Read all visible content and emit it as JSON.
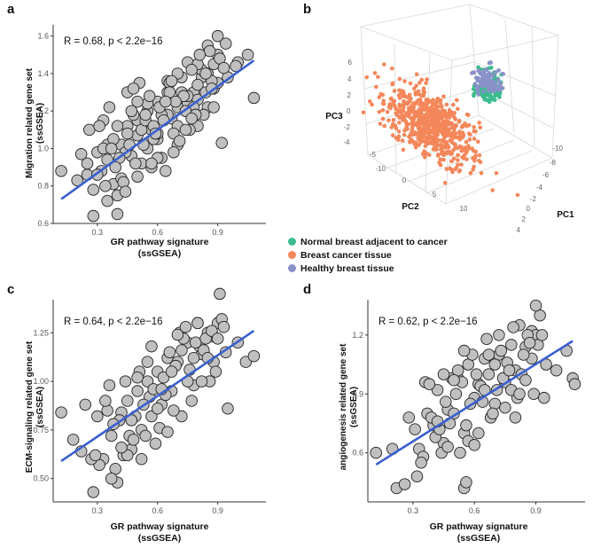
{
  "panels": {
    "a": {
      "letter": "a",
      "stat": "R = 0.68, p < 2.2e−16",
      "ylabel": "Migration related gene set",
      "ylabel_unit": "(ssGSEA)"
    },
    "b": {
      "letter": "b"
    },
    "c": {
      "letter": "c",
      "stat": "R = 0.64, p < 2.2e−16",
      "ylabel": "ECM-signaling related gene set",
      "ylabel_unit": "(ssGSEA)"
    },
    "d": {
      "letter": "d",
      "stat": "R = 0.62, p < 2.2e−16",
      "ylabel": "angiogenesis related gene set",
      "ylabel_unit": "(ssGSEA)"
    }
  },
  "xlabel": "GR pathway signature",
  "xlabel_unit": "(ssGSEA)",
  "colors": {
    "points": "#c0c0c0",
    "line": "#3a5fd0",
    "normal": "#3dbb8f",
    "cancer": "#f4875a",
    "healthy": "#8a91c9"
  },
  "chart_data": [
    {
      "panel": "a",
      "type": "scatter",
      "title": "",
      "xlabel": "GR pathway signature (ssGSEA)",
      "ylabel": "Migration related gene set (ssGSEA)",
      "xlim": [
        0.08,
        1.14
      ],
      "ylim": [
        0.6,
        1.66
      ],
      "xticks": [
        "0.3",
        "0.6",
        "0.9"
      ],
      "xtick_values": [
        0.3,
        0.6,
        0.9
      ],
      "yticks": [
        "0.6",
        "0.8",
        "1.0",
        "1.2",
        "1.4",
        "1.6"
      ],
      "ytick_values": [
        0.6,
        0.8,
        1.0,
        1.2,
        1.4,
        1.6
      ],
      "fit": {
        "x": [
          0.12,
          1.08
        ],
        "y": [
          0.73,
          1.47
        ]
      },
      "x": [
        0.12,
        0.2,
        0.22,
        0.25,
        0.28,
        0.3,
        0.32,
        0.33,
        0.35,
        0.38,
        0.4,
        0.42,
        0.45,
        0.47,
        0.5,
        0.52,
        0.55,
        0.57,
        0.6,
        0.62,
        0.65,
        0.67,
        0.7,
        0.72,
        0.75,
        0.78,
        0.8,
        0.82,
        0.85,
        0.88,
        0.9,
        0.95,
        1.0,
        1.08,
        0.3,
        0.35,
        0.4,
        0.45,
        0.5,
        0.55,
        0.6,
        0.65,
        0.7,
        0.75,
        0.8,
        0.85,
        0.9,
        0.4,
        0.5,
        0.6,
        0.7,
        0.8,
        0.45,
        0.55,
        0.65,
        0.75,
        0.85,
        0.25,
        0.35,
        0.42,
        0.48,
        0.58,
        0.68,
        0.78,
        0.88,
        0.38,
        0.52,
        0.62,
        0.72,
        0.82,
        0.92,
        0.33,
        0.44,
        0.56,
        0.66,
        0.76,
        0.86,
        0.28,
        0.46,
        0.54,
        0.64,
        0.74,
        0.84,
        0.94,
        0.36,
        0.5,
        0.6,
        0.7,
        0.8,
        0.9,
        0.43,
        0.53,
        0.63,
        0.73,
        0.83,
        0.41,
        0.51,
        0.61,
        0.71,
        0.81,
        0.91,
        0.39,
        0.57,
        0.69,
        0.77,
        0.87,
        0.26,
        0.34,
        0.48,
        0.58,
        0.68,
        0.99,
        1.05,
        0.93,
        0.88,
        0.79,
        0.66,
        0.59,
        0.49,
        0.37,
        0.31,
        0.44,
        0.54,
        0.64,
        0.74,
        0.84,
        0.47,
        0.57,
        0.67,
        0.77,
        0.87
      ],
      "y": [
        0.88,
        0.83,
        0.97,
        0.86,
        0.64,
        0.98,
        0.88,
        1.15,
        1.02,
        0.81,
        0.65,
        1.02,
        1.12,
        0.96,
        1.07,
        0.92,
        1.2,
        1.1,
        1.05,
        0.95,
        1.3,
        1.16,
        1.12,
        1.38,
        1.24,
        1.3,
        1.26,
        1.38,
        1.4,
        1.45,
        1.5,
        1.38,
        1.46,
        1.27,
        0.86,
        0.94,
        1.12,
        1.08,
        1.15,
        1.0,
        1.25,
        1.18,
        1.22,
        1.28,
        1.34,
        1.22,
        1.6,
        0.75,
        0.85,
        0.95,
        1.02,
        1.12,
        1.3,
        1.24,
        1.36,
        1.46,
        1.55,
        0.92,
        0.72,
        0.84,
        1.18,
        1.05,
        1.08,
        1.22,
        1.32,
        1.05,
        1.1,
        1.18,
        1.3,
        1.42,
        1.03,
        1.0,
        0.98,
        1.28,
        1.35,
        1.1,
        1.52,
        0.78,
        1.02,
        1.15,
        0.88,
        1.2,
        1.3,
        1.56,
        1.22,
        1.25,
        1.08,
        1.4,
        1.45,
        1.35,
        0.82,
        1.02,
        1.15,
        1.28,
        1.18,
        0.95,
        1.35,
        1.22,
        1.04,
        1.5,
        1.48,
        0.9,
        0.9,
        1.25,
        1.42,
        1.36,
        1.1,
        0.8,
        1.32,
        1.12,
        0.98,
        1.44,
        1.5,
        1.43,
        1.22,
        1.18,
        1.3,
        1.08,
        0.92,
        1.0,
        1.12,
        0.77,
        1.18,
        1.25,
        1.1,
        1.4,
        1.2,
        0.92,
        1.36,
        1.16,
        1.32
      ]
    },
    {
      "panel": "c",
      "type": "scatter",
      "title": "",
      "xlabel": "GR pathway signature (ssGSEA)",
      "ylabel": "ECM-signaling related gene set (ssGSEA)",
      "xlim": [
        0.08,
        1.14
      ],
      "ylim": [
        0.38,
        1.42
      ],
      "xticks": [
        "0.3",
        "0.6",
        "0.9"
      ],
      "xtick_values": [
        0.3,
        0.6,
        0.9
      ],
      "yticks": [
        "0.50",
        "0.75",
        "1.00",
        "1.25"
      ],
      "ytick_values": [
        0.5,
        0.75,
        1.0,
        1.25
      ],
      "fit": {
        "x": [
          0.12,
          1.08
        ],
        "y": [
          0.59,
          1.26
        ]
      },
      "x": [
        0.12,
        0.18,
        0.22,
        0.24,
        0.28,
        0.3,
        0.33,
        0.35,
        0.37,
        0.4,
        0.42,
        0.45,
        0.47,
        0.5,
        0.52,
        0.55,
        0.57,
        0.6,
        0.62,
        0.65,
        0.67,
        0.7,
        0.72,
        0.75,
        0.78,
        0.8,
        0.82,
        0.85,
        0.88,
        0.9,
        0.92,
        0.95,
        1.0,
        1.04,
        1.08,
        0.31,
        0.36,
        0.41,
        0.46,
        0.51,
        0.56,
        0.61,
        0.66,
        0.71,
        0.76,
        0.81,
        0.86,
        0.91,
        0.43,
        0.53,
        0.63,
        0.73,
        0.83,
        0.48,
        0.58,
        0.68,
        0.78,
        0.88,
        0.27,
        0.38,
        0.44,
        0.49,
        0.59,
        0.69,
        0.79,
        0.89,
        0.39,
        0.54,
        0.64,
        0.74,
        0.84,
        0.94,
        0.34,
        0.45,
        0.57,
        0.67,
        0.77,
        0.87,
        0.29,
        0.47,
        0.55,
        0.65,
        0.75,
        0.85,
        0.93,
        0.37,
        0.52,
        0.62,
        0.72,
        0.82,
        0.42,
        0.5,
        0.6,
        0.7,
        0.8,
        0.9
      ],
      "y": [
        0.84,
        0.7,
        0.64,
        0.88,
        0.43,
        0.82,
        0.6,
        0.85,
        0.72,
        0.48,
        0.84,
        0.9,
        0.65,
        0.95,
        0.75,
        1.0,
        0.82,
        1.05,
        0.88,
        1.12,
        0.95,
        1.1,
        0.82,
        1.2,
        0.98,
        1.3,
        1.14,
        1.25,
        1.1,
        1.3,
        1.32,
        0.86,
        1.2,
        1.1,
        1.13,
        0.57,
        0.98,
        0.8,
        0.72,
        1.05,
        0.92,
        0.76,
        1.15,
        1.25,
        1.06,
        1.18,
        1.0,
        1.45,
        0.62,
        0.88,
        1.02,
        1.22,
        1.16,
        0.7,
        0.96,
        0.85,
        1.12,
        1.23,
        0.6,
        0.78,
        1.0,
        0.82,
        0.68,
        1.08,
        1.2,
        1.05,
        0.55,
        0.72,
        0.93,
        1.28,
        1.22,
        1.15,
        0.9,
        0.62,
        1.18,
        1.05,
        0.9,
        1.26,
        0.62,
        0.8,
        1.1,
        0.74,
        1.0,
        1.12,
        1.28,
        0.5,
        0.6,
        0.96,
        1.16,
        1.0,
        0.66,
        1.02,
        0.86,
        1.24,
        1.3,
        1.22
      ]
    },
    {
      "panel": "d",
      "type": "scatter",
      "title": "",
      "xlabel": "GR pathway signature (ssGSEA)",
      "ylabel": "angiogenesis related gene set (ssGSEA)",
      "xlim": [
        0.08,
        1.14
      ],
      "ylim": [
        0.35,
        1.38
      ],
      "xticks": [
        "0.3",
        "0.6",
        "0.9"
      ],
      "xtick_values": [
        0.3,
        0.6,
        0.9
      ],
      "yticks": [
        "0.6",
        "0.9",
        "1.2"
      ],
      "ytick_values": [
        0.6,
        0.9,
        1.2
      ],
      "fit": {
        "x": [
          0.12,
          1.08
        ],
        "y": [
          0.54,
          1.17
        ]
      },
      "x": [
        0.12,
        0.2,
        0.22,
        0.26,
        0.28,
        0.31,
        0.33,
        0.35,
        0.37,
        0.4,
        0.42,
        0.45,
        0.47,
        0.5,
        0.52,
        0.55,
        0.57,
        0.6,
        0.62,
        0.65,
        0.67,
        0.7,
        0.72,
        0.75,
        0.78,
        0.8,
        0.82,
        0.85,
        0.88,
        0.9,
        0.92,
        0.95,
        1.0,
        1.05,
        1.08,
        1.09,
        0.32,
        0.36,
        0.41,
        0.46,
        0.51,
        0.56,
        0.61,
        0.66,
        0.71,
        0.76,
        0.81,
        0.86,
        0.91,
        0.43,
        0.53,
        0.63,
        0.73,
        0.83,
        0.48,
        0.58,
        0.68,
        0.78,
        0.88,
        0.38,
        0.44,
        0.49,
        0.59,
        0.69,
        0.79,
        0.89,
        0.39,
        0.54,
        0.64,
        0.74,
        0.84,
        0.94,
        0.34,
        0.45,
        0.57,
        0.67,
        0.77,
        0.87,
        0.47,
        0.55,
        0.65,
        0.75,
        0.85,
        0.93,
        0.52,
        0.62,
        0.72,
        0.82,
        0.42,
        0.5,
        0.6,
        0.7,
        0.8,
        0.9,
        0.55,
        0.56
      ],
      "y": [
        0.6,
        0.62,
        0.42,
        0.44,
        0.78,
        0.72,
        0.62,
        0.58,
        0.8,
        0.74,
        0.92,
        0.65,
        0.82,
        0.8,
        0.98,
        0.7,
        1.05,
        0.88,
        0.95,
        1.08,
        1.0,
        0.85,
        1.1,
        0.96,
        1.15,
        1.02,
        1.25,
        1.14,
        1.22,
        1.2,
        1.3,
        1.05,
        1.02,
        1.12,
        0.98,
        0.95,
        0.48,
        0.96,
        0.68,
        0.86,
        0.9,
        0.74,
        1.0,
        1.18,
        0.92,
        1.06,
        0.88,
        1.2,
        1.15,
        0.72,
        0.6,
        0.94,
        1.12,
        1.0,
        0.75,
        0.85,
        0.78,
        0.92,
        1.08,
        0.95,
        0.6,
        0.98,
        1.1,
        0.8,
        1.24,
        0.9,
        0.78,
        0.96,
        0.86,
        0.98,
        1.1,
        0.88,
        0.55,
        1.0,
        0.66,
        1.1,
        1.02,
        1.16,
        0.63,
        1.12,
        0.92,
        0.83,
        0.97,
        1.2,
        1.02,
        0.7,
        1.2,
        0.9,
        0.76,
        0.97,
        0.64,
        1.05,
        0.78,
        1.35,
        0.42,
        0.45
      ]
    },
    {
      "panel": "b",
      "type": "scatter3d",
      "title": "",
      "axis_labels": [
        "PC1",
        "PC2",
        "PC3"
      ],
      "pc1_ticks": [
        "-10",
        "-8",
        "-6",
        "-4",
        "-2",
        "0",
        "2",
        "4"
      ],
      "pc2_ticks": [
        "0",
        "5",
        "10"
      ],
      "pc3_ticks": [
        "6",
        "4",
        "2",
        "0",
        "-2",
        "-4"
      ],
      "pc2_extra_ticks": [
        "-5",
        "-10"
      ],
      "legend": [
        "Normal breast adjacent to cancer",
        "Breast cancer tissue",
        "Healthy breast tissue"
      ],
      "clusters": [
        {
          "name": "Breast cancer tissue",
          "center_pc": [
            0,
            0,
            0
          ],
          "spread": "large",
          "n": 900
        },
        {
          "name": "Normal breast adjacent to cancer",
          "center_pc": [
            -6,
            -5,
            3
          ],
          "spread": "small",
          "n": 140
        },
        {
          "name": "Healthy breast tissue",
          "center_pc": [
            -6,
            -6,
            4
          ],
          "spread": "small",
          "n": 90
        }
      ]
    }
  ]
}
